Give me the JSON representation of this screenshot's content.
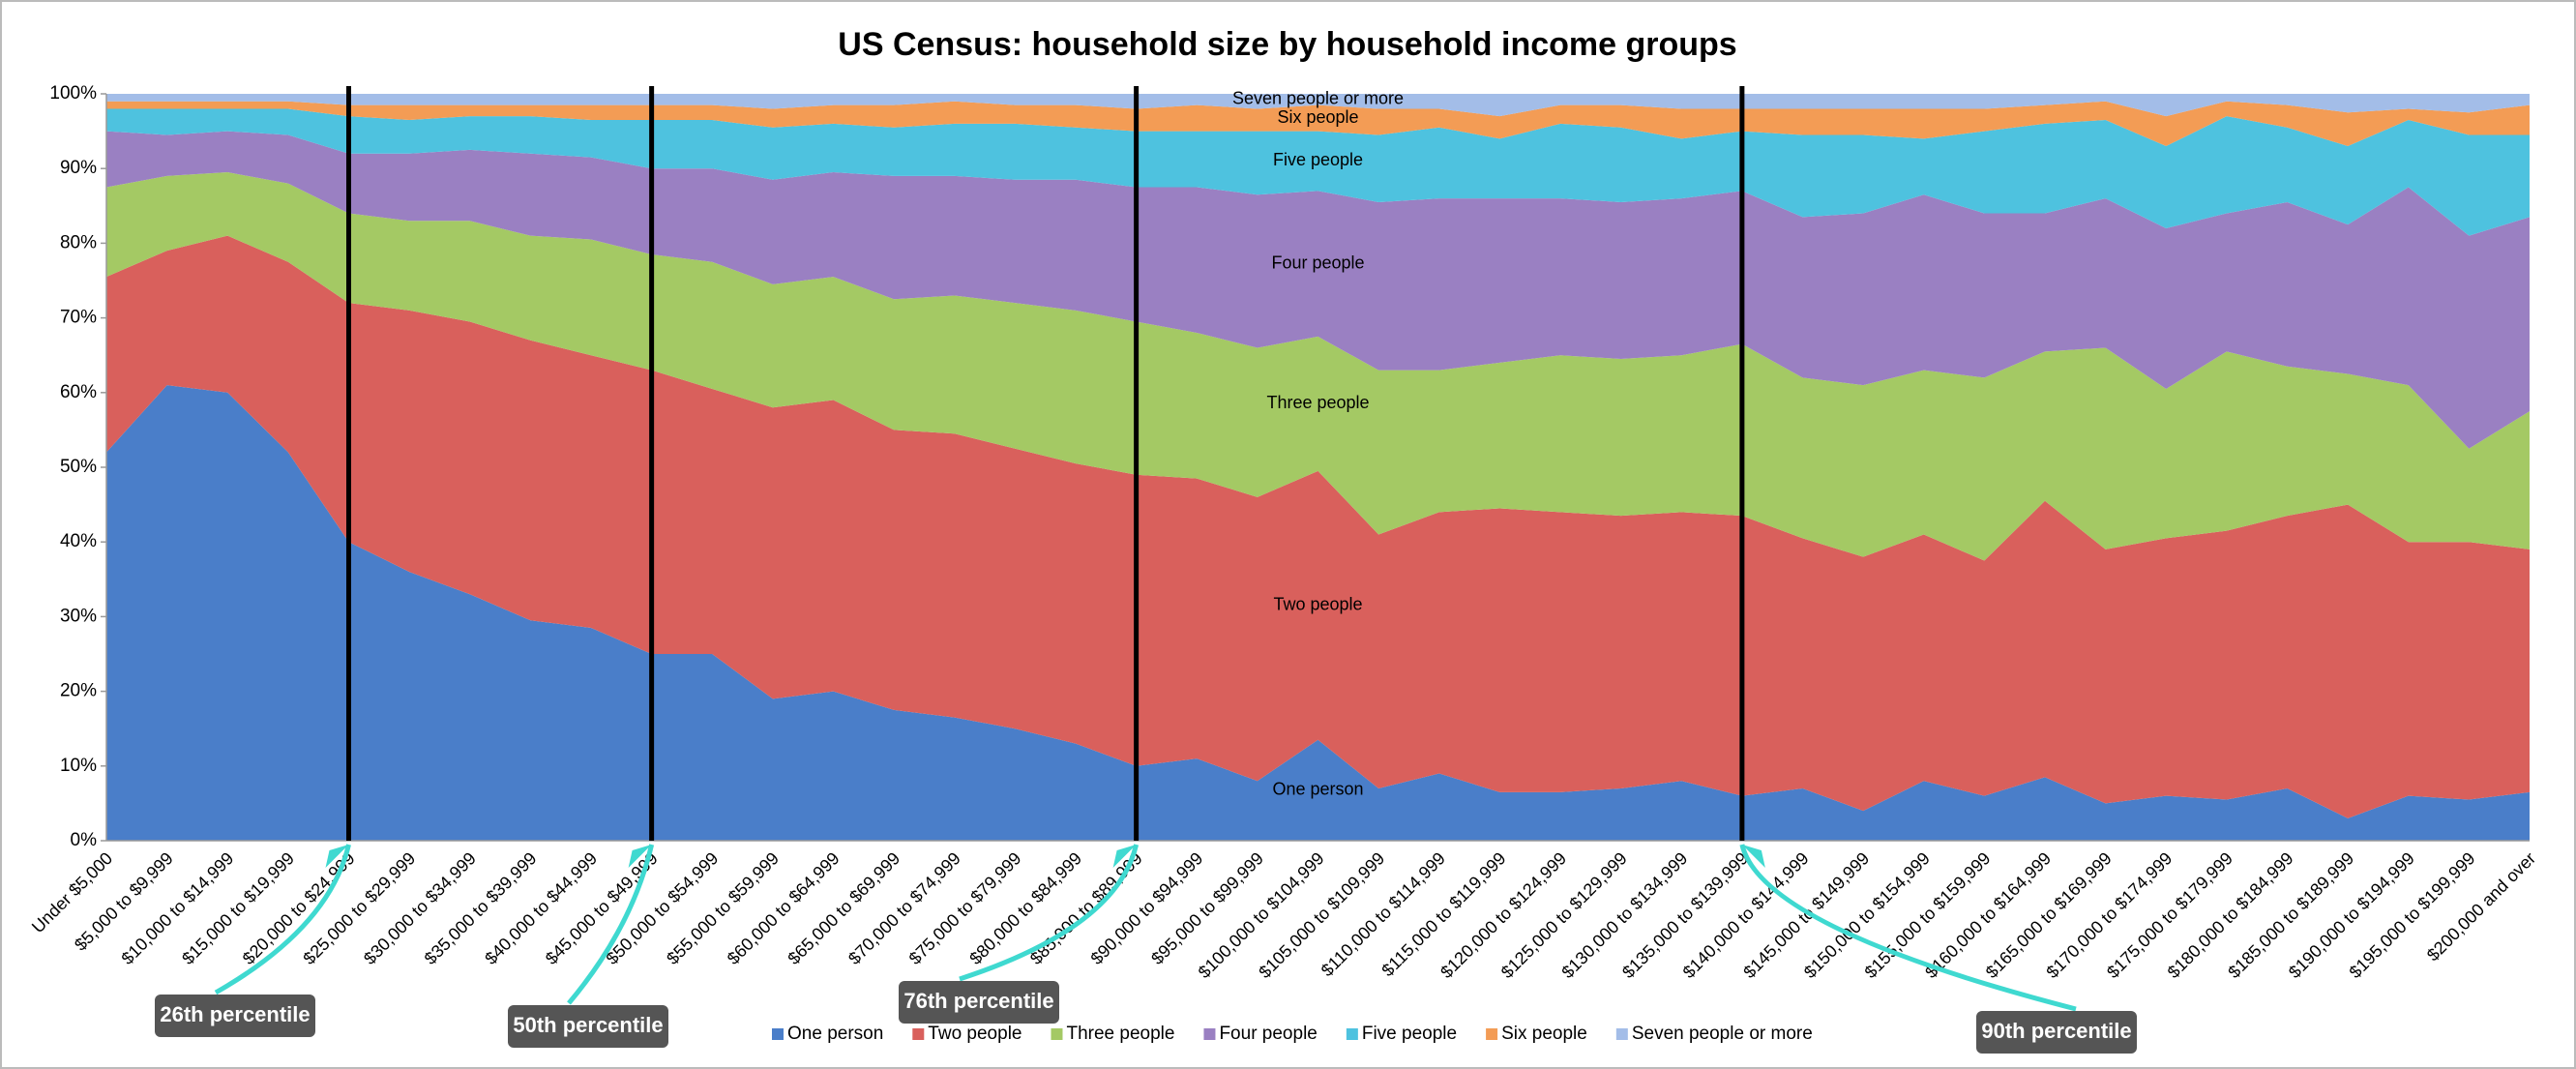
{
  "chart_data": {
    "type": "stacked_area_100",
    "title": "US Census: household size by household income groups",
    "categories": [
      "Under $5,000",
      "$5,000 to $9,999",
      "$10,000 to $14,999",
      "$15,000 to $19,999",
      "$20,000 to $24,999",
      "$25,000 to $29,999",
      "$30,000 to $34,999",
      "$35,000 to $39,999",
      "$40,000 to $44,999",
      "$45,000 to $49,999",
      "$50,000 to $54,999",
      "$55,000 to $59,999",
      "$60,000 to $64,999",
      "$65,000 to $69,999",
      "$70,000 to $74,999",
      "$75,000 to $79,999",
      "$80,000 to $84,999",
      "$85,000 to $89,999",
      "$90,000 to $94,999",
      "$95,000 to $99,999",
      "$100,000 to $104,999",
      "$105,000 to $109,999",
      "$110,000 to $114,999",
      "$115,000 to $119,999",
      "$120,000 to $124,999",
      "$125,000 to $129,999",
      "$130,000 to $134,999",
      "$135,000 to $139,999",
      "$140,000 to $144,999",
      "$145,000 to $149,999",
      "$150,000 to $154,999",
      "$155,000 to $159,999",
      "$160,000 to $164,999",
      "$165,000 to $169,999",
      "$170,000 to $174,999",
      "$175,000 to $179,999",
      "$180,000 to $184,999",
      "$185,000 to $189,999",
      "$190,000 to $194,999",
      "$195,000 to $199,999",
      "$200,000 and over"
    ],
    "series": [
      {
        "name": "One person",
        "color": "#4a7ec9",
        "values": [
          52,
          61,
          60,
          52,
          40,
          36,
          33,
          29.5,
          28.5,
          25,
          25,
          19,
          20,
          17.5,
          16.5,
          15,
          13,
          10,
          11,
          8,
          13.5,
          7,
          9,
          6.5,
          6.5,
          7,
          8,
          6,
          7,
          4,
          8,
          6,
          8.5,
          5,
          6,
          5.5,
          7,
          3,
          6,
          5.5,
          6.5
        ]
      },
      {
        "name": "Two people",
        "color": "#d9605c",
        "values": [
          23.5,
          18,
          21,
          25.5,
          32,
          35,
          36.5,
          37.5,
          36.5,
          38,
          35.5,
          39,
          39,
          37.5,
          38,
          37.5,
          37.5,
          39,
          37.5,
          38,
          36,
          34,
          35,
          38,
          37.5,
          36.5,
          36,
          37.5,
          33.5,
          34,
          33,
          31.5,
          37,
          34,
          34.5,
          36,
          36.5,
          42,
          34,
          34.5,
          32.5
        ]
      },
      {
        "name": "Three people",
        "color": "#a4c964",
        "values": [
          12,
          10,
          8.5,
          10.5,
          12,
          12,
          13.5,
          14,
          15.5,
          15.5,
          17,
          16.5,
          16.5,
          17.5,
          18.5,
          19.5,
          20.5,
          20.5,
          19.5,
          20,
          18,
          22,
          19,
          19.5,
          21,
          21,
          21,
          23,
          21.5,
          23,
          22,
          24.5,
          20,
          27,
          20,
          24,
          20,
          17.5,
          21,
          12.5,
          18.5
        ]
      },
      {
        "name": "Four people",
        "color": "#9a80c2",
        "values": [
          7.5,
          5.5,
          5.5,
          6.5,
          8,
          9,
          9.5,
          11,
          11,
          11.5,
          12.5,
          14,
          14,
          16.5,
          16,
          16.5,
          17.5,
          18,
          19.5,
          20.5,
          19.5,
          22.5,
          23,
          22,
          21,
          21,
          21,
          20.5,
          21.5,
          23,
          23.5,
          22,
          18.5,
          20,
          21.5,
          18.5,
          22,
          20,
          26.5,
          28.5,
          26
        ]
      },
      {
        "name": "Five people",
        "color": "#4ec2df",
        "values": [
          3,
          3.5,
          3,
          3.5,
          5,
          4.5,
          4.5,
          5,
          5,
          6.5,
          6.5,
          7,
          6.5,
          6.5,
          7,
          7.5,
          7,
          7.5,
          7.5,
          8.5,
          8,
          9,
          9.5,
          8,
          10,
          10,
          8,
          8,
          11,
          10.5,
          7.5,
          11,
          12,
          10.5,
          11,
          13,
          10,
          10.5,
          9,
          13.5,
          11
        ]
      },
      {
        "name": "Six people",
        "color": "#f39c55",
        "values": [
          1,
          1,
          1,
          1,
          1.5,
          2,
          1.5,
          1.5,
          2,
          2,
          2,
          2.5,
          2.5,
          3,
          3,
          2.5,
          3,
          3,
          3.5,
          3,
          3.5,
          3.5,
          2.5,
          3,
          2.5,
          3,
          4,
          3,
          3.5,
          3.5,
          4,
          3,
          2.5,
          2.5,
          4,
          2,
          3,
          4.5,
          1.5,
          3,
          4
        ]
      },
      {
        "name": "Seven people or more",
        "color": "#a3bde8",
        "values": [
          1,
          1,
          1,
          1,
          1.5,
          1.5,
          1.5,
          1.5,
          1.5,
          1.5,
          1.5,
          2,
          1.5,
          1.5,
          1,
          1.5,
          1.5,
          2,
          1.5,
          2,
          1.5,
          2,
          2,
          3,
          1.5,
          1.5,
          2,
          2,
          2,
          2,
          2,
          2,
          1.5,
          1,
          3,
          1,
          1.5,
          2.5,
          2,
          2.5,
          1.5
        ]
      }
    ],
    "ylim": [
      0,
      100
    ],
    "yticks": [
      {
        "value": 0,
        "label": "0%"
      },
      {
        "value": 10,
        "label": "10%"
      },
      {
        "value": 20,
        "label": "20%"
      },
      {
        "value": 30,
        "label": "30%"
      },
      {
        "value": 40,
        "label": "40%"
      },
      {
        "value": 50,
        "label": "50%"
      },
      {
        "value": 60,
        "label": "60%"
      },
      {
        "value": 70,
        "label": "70%"
      },
      {
        "value": 80,
        "label": "80%"
      },
      {
        "value": 90,
        "label": "90%"
      },
      {
        "value": 100,
        "label": "100%"
      }
    ],
    "annotations": [
      {
        "text": "26th percentile",
        "category": "$20,000 to $24,999"
      },
      {
        "text": "50th percentile",
        "category": "$45,000 to $49,999"
      },
      {
        "text": "76th percentile",
        "category": "$85,000 to $89,999"
      },
      {
        "text": "90th percentile",
        "category": "$135,000 to $139,999"
      }
    ],
    "legend": "bottom"
  }
}
